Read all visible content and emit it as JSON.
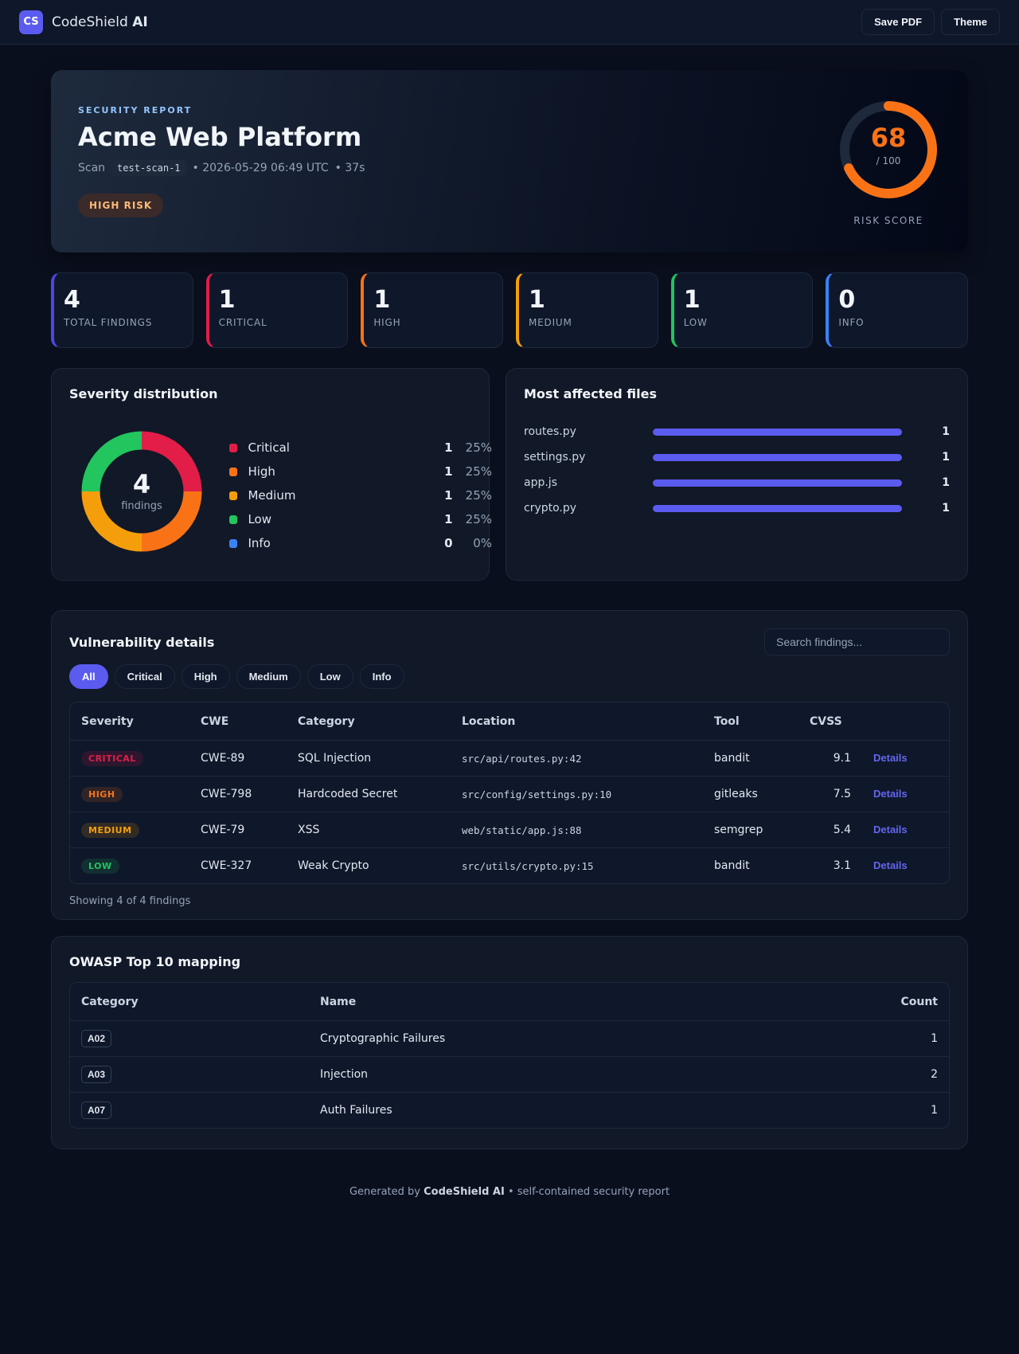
{
  "nav": {
    "logo": "CS",
    "brand": "CodeShield",
    "brand_bold": "AI",
    "buttons": [
      "Save PDF",
      "Theme"
    ]
  },
  "hero": {
    "eyebrow": "SECURITY REPORT",
    "title": "Acme Web Platform",
    "scan_label": "Scan",
    "scan_id": "test-scan-1",
    "timestamp": "• 2026-05-29 06:49 UTC",
    "duration": "• 37s",
    "risk_badge": "HIGH RISK",
    "score": 68,
    "score_max": 100,
    "score_max_label": "/ 100",
    "score_color": "#f97316",
    "score_label": "RISK SCORE"
  },
  "stats": [
    {
      "value": 4,
      "label": "TOTAL FINDINGS",
      "color": "#4f46e5"
    },
    {
      "value": 1,
      "label": "CRITICAL",
      "color": "#e11d48"
    },
    {
      "value": 1,
      "label": "HIGH",
      "color": "#f97316"
    },
    {
      "value": 1,
      "label": "MEDIUM",
      "color": "#f59e0b"
    },
    {
      "value": 1,
      "label": "LOW",
      "color": "#22c55e"
    },
    {
      "value": 0,
      "label": "INFO",
      "color": "#3b82f6"
    }
  ],
  "severity": {
    "title": "Severity distribution",
    "total": 4,
    "total_label": "findings",
    "items": [
      {
        "name": "Critical",
        "color": "#e11d48",
        "count": 1,
        "percent": "25%"
      },
      {
        "name": "High",
        "color": "#f97316",
        "count": 1,
        "percent": "25%"
      },
      {
        "name": "Medium",
        "color": "#f59e0b",
        "count": 1,
        "percent": "25%"
      },
      {
        "name": "Low",
        "color": "#22c55e",
        "count": 1,
        "percent": "25%"
      },
      {
        "name": "Info",
        "color": "#3b82f6",
        "count": 0,
        "percent": "0%"
      }
    ]
  },
  "files": {
    "title": "Most affected files",
    "color": "#5b5bf0",
    "items": [
      {
        "name": "routes.py",
        "count": 1
      },
      {
        "name": "settings.py",
        "count": 1
      },
      {
        "name": "app.js",
        "count": 1
      },
      {
        "name": "crypto.py",
        "count": 1
      }
    ]
  },
  "vulns": {
    "title": "Vulnerability details",
    "search_placeholder": "Search findings...",
    "filters": [
      "All",
      "Critical",
      "High",
      "Medium",
      "Low",
      "Info"
    ],
    "columns": [
      "Severity",
      "CWE",
      "Category",
      "Location",
      "Tool",
      "CVSS"
    ],
    "rows": [
      {
        "severity": "CRITICAL",
        "color": "#e11d48",
        "cwe": "CWE-89",
        "category": "SQL Injection",
        "location": "src/api/routes.py:42",
        "tool": "bandit",
        "cvss": 9.1,
        "action": "Details"
      },
      {
        "severity": "HIGH",
        "color": "#f97316",
        "cwe": "CWE-798",
        "category": "Hardcoded Secret",
        "location": "src/config/settings.py:10",
        "tool": "gitleaks",
        "cvss": 7.5,
        "action": "Details"
      },
      {
        "severity": "MEDIUM",
        "color": "#f59e0b",
        "cwe": "CWE-79",
        "category": "XSS",
        "location": "web/static/app.js:88",
        "tool": "semgrep",
        "cvss": 5.4,
        "action": "Details"
      },
      {
        "severity": "LOW",
        "color": "#22c55e",
        "cwe": "CWE-327",
        "category": "Weak Crypto",
        "location": "src/utils/crypto.py:15",
        "tool": "bandit",
        "cvss": 3.1,
        "action": "Details"
      }
    ],
    "footer": "Showing 4 of 4 findings"
  },
  "owasp": {
    "title": "OWASP Top 10 mapping",
    "columns": [
      "Category",
      "Name",
      "Count"
    ],
    "rows": [
      [
        "A02",
        "Cryptographic Failures",
        1
      ],
      [
        "A03",
        "Injection",
        2
      ],
      [
        "A07",
        "Auth Failures",
        1
      ]
    ]
  },
  "footer": {
    "prefix": "Generated by",
    "brand": "CodeShield AI",
    "suffix": "• self-contained security report"
  }
}
